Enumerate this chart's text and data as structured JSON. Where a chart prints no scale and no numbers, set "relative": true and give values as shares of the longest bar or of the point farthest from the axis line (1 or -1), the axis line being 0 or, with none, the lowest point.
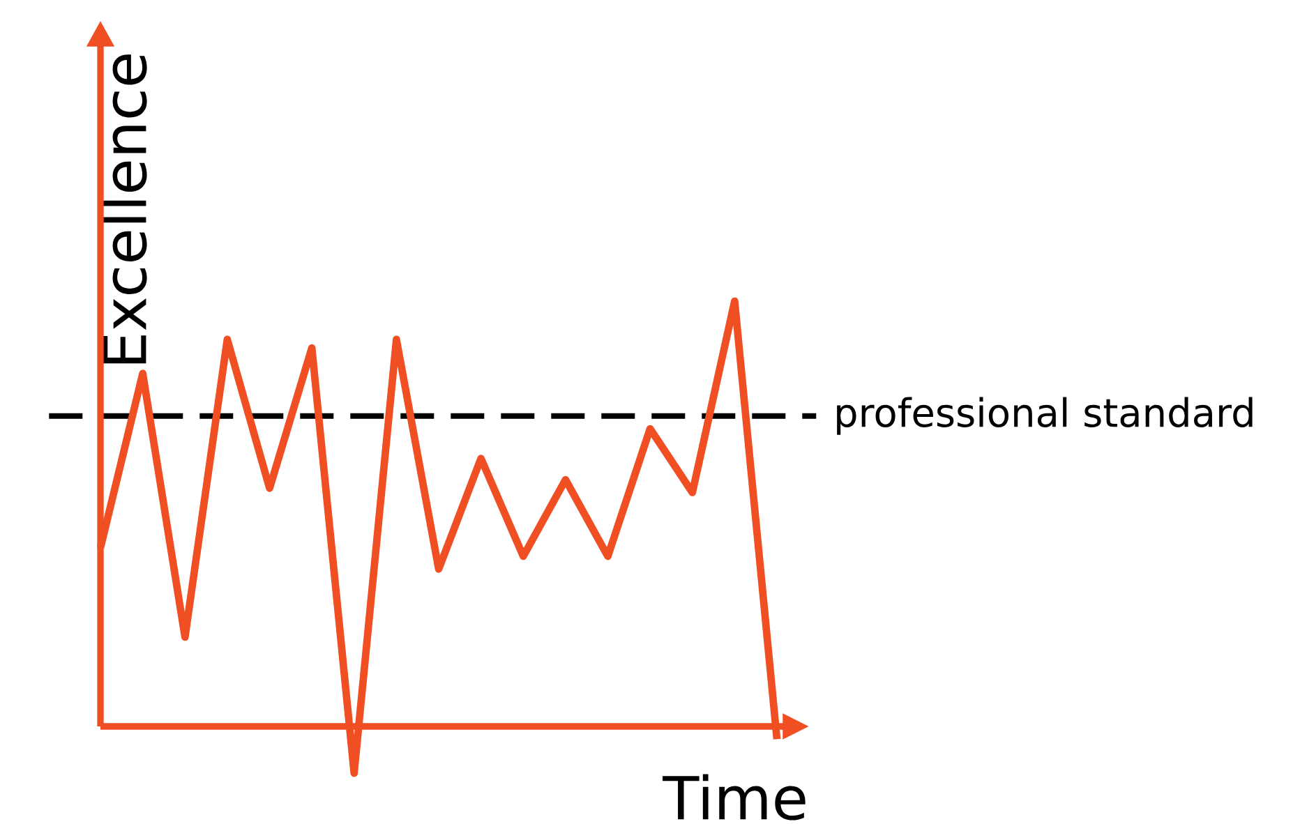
{
  "chart_data": {
    "type": "line",
    "relative": true,
    "xlabel": "Time",
    "ylabel": "Excellence",
    "categories": [
      null,
      null,
      null,
      null,
      null,
      null,
      null,
      null,
      null,
      null,
      null,
      null,
      null,
      null,
      null,
      null,
      null
    ],
    "series": [
      {
        "color": "#f04e23",
        "values": [
          0.42,
          0.83,
          0.21,
          0.91,
          0.56,
          0.89,
          -0.11,
          0.91,
          0.37,
          0.63,
          0.4,
          0.58,
          0.4,
          0.7,
          0.55,
          1,
          -0.03
        ]
      }
    ],
    "ref_lines": [
      {
        "axis": "y",
        "value": 0,
        "color": "#f04e23",
        "line_style": "solid"
      },
      {
        "axis": "y",
        "value": 0.73,
        "label": "professional standard",
        "color": "#000000",
        "line_style": "dashed"
      }
    ]
  }
}
